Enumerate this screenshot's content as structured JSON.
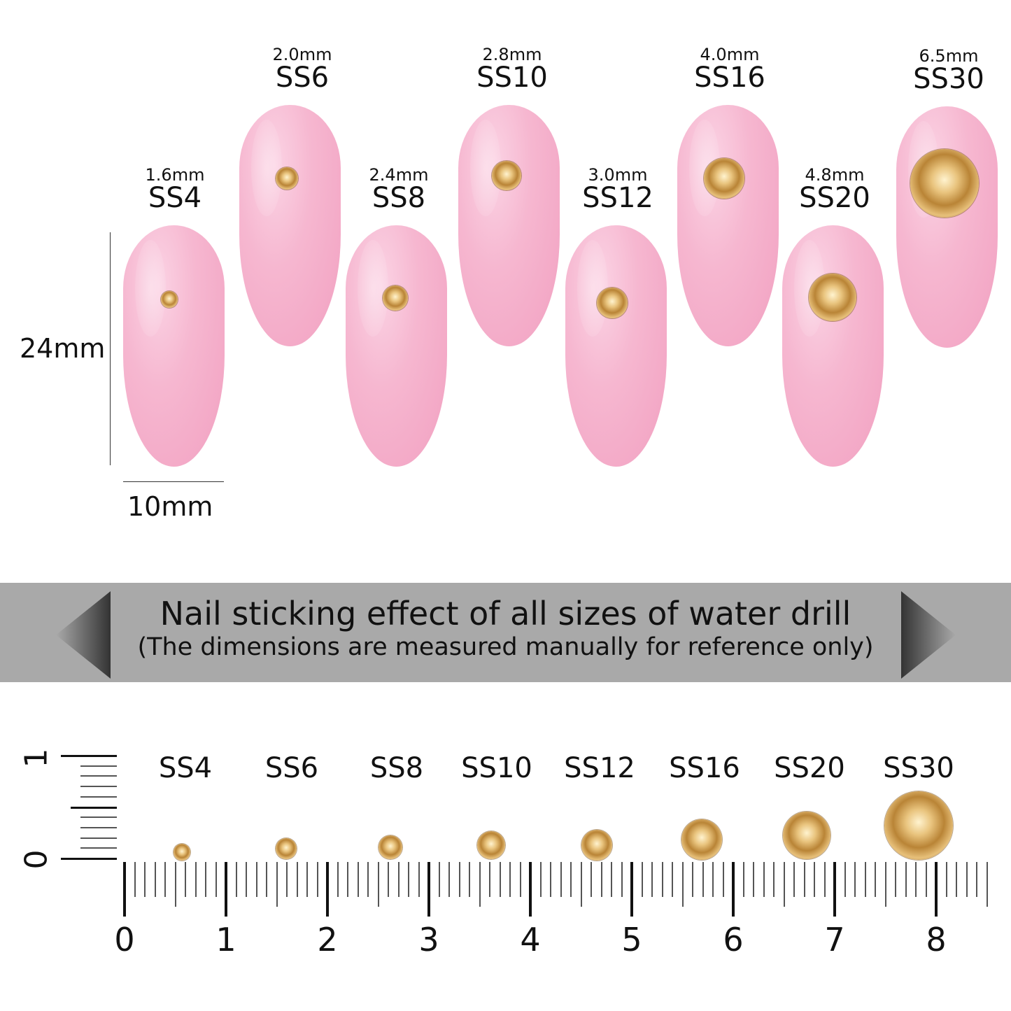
{
  "nails": [
    {
      "mm": "1.6mm",
      "ss": "SS4"
    },
    {
      "mm": "2.0mm",
      "ss": "SS6"
    },
    {
      "mm": "2.4mm",
      "ss": "SS8"
    },
    {
      "mm": "2.8mm",
      "ss": "SS10"
    },
    {
      "mm": "3.0mm",
      "ss": "SS12"
    },
    {
      "mm": "4.0mm",
      "ss": "SS16"
    },
    {
      "mm": "4.8mm",
      "ss": "SS20"
    },
    {
      "mm": "6.5mm",
      "ss": "SS30"
    }
  ],
  "dimensions": {
    "height": "24mm",
    "width": "10mm"
  },
  "banner": {
    "title": "Nail sticking effect of all sizes of water drill",
    "subtitle": "(The dimensions are measured manually for reference only)",
    "color": "#a9a9a9"
  },
  "ruler": {
    "labels": [
      "SS4",
      "SS6",
      "SS8",
      "SS10",
      "SS12",
      "SS16",
      "SS20",
      "SS30"
    ],
    "numbers": [
      "0",
      "1",
      "2",
      "3",
      "4",
      "5",
      "6",
      "7",
      "8"
    ],
    "vertical_numbers": [
      "0",
      "1"
    ]
  },
  "colors": {
    "nail": "#f5b3cd",
    "gem": "#d4a458"
  }
}
